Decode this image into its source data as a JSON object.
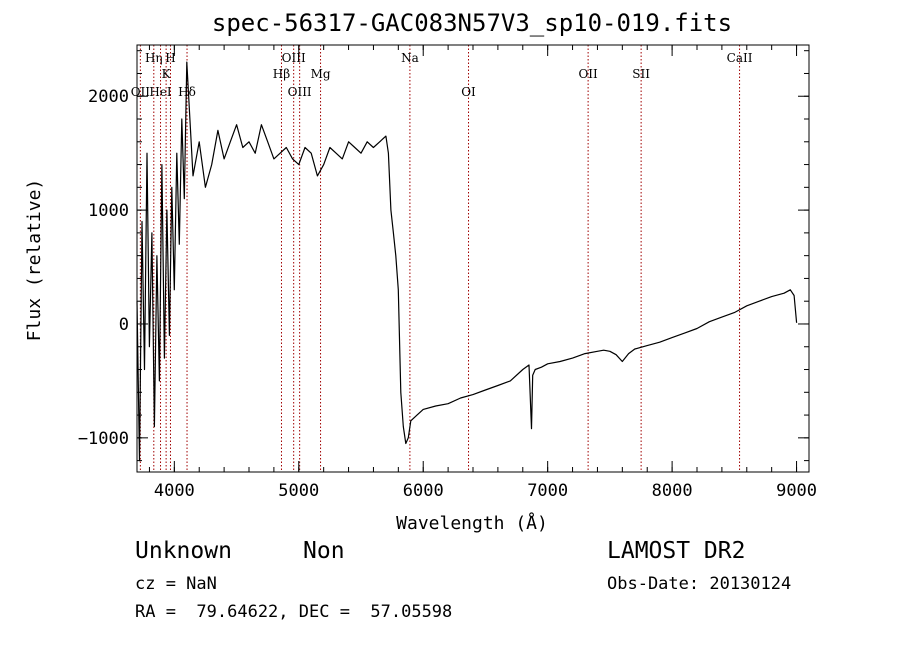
{
  "chart_data": {
    "type": "line",
    "title": "spec-56317-GAC083N57V3_sp10-019.fits",
    "xlabel": "Wavelength (Å)",
    "ylabel": "Flux (relative)",
    "xlim": [
      3700,
      9100
    ],
    "ylim": [
      -1300,
      2450
    ],
    "xticks": [
      4000,
      5000,
      6000,
      7000,
      8000,
      9000
    ],
    "yticks": [
      -1000,
      0,
      1000,
      2000
    ],
    "xtick_labels": [
      "4000",
      "5000",
      "6000",
      "7000",
      "8000",
      "9000"
    ],
    "ytick_labels": [
      "−1000",
      "0",
      "1000",
      "2000"
    ],
    "series": [
      {
        "x": [
          3700,
          3720,
          3740,
          3760,
          3780,
          3800,
          3820,
          3840,
          3860,
          3880,
          3900,
          3920,
          3940,
          3960,
          3980,
          4000,
          4020,
          4040,
          4060,
          4080,
          4100,
          4150,
          4200,
          4250,
          4300,
          4350,
          4400,
          4450,
          4500,
          4550,
          4600,
          4650,
          4700,
          4750,
          4800,
          4850,
          4900,
          4950,
          5000,
          5050,
          5100,
          5150,
          5200,
          5250,
          5300,
          5350,
          5400,
          5450,
          5500,
          5550,
          5600,
          5650,
          5700,
          5720,
          5740,
          5760,
          5780,
          5800,
          5820,
          5840,
          5860,
          5880,
          5900,
          5950,
          6000,
          6100,
          6200,
          6300,
          6400,
          6500,
          6600,
          6700,
          6800,
          6850,
          6870,
          6880,
          6900,
          6950,
          7000,
          7100,
          7200,
          7300,
          7400,
          7450,
          7500,
          7550,
          7600,
          7650,
          7700,
          7800,
          7900,
          8000,
          8100,
          8200,
          8300,
          8400,
          8500,
          8600,
          8700,
          8800,
          8900,
          8950,
          8980,
          9000
        ],
        "y": [
          200,
          -1200,
          900,
          -400,
          1500,
          -200,
          800,
          -900,
          600,
          -500,
          1400,
          -300,
          1000,
          -100,
          1200,
          300,
          1500,
          700,
          1800,
          1100,
          2300,
          1300,
          1600,
          1200,
          1400,
          1700,
          1450,
          1600,
          1750,
          1550,
          1600,
          1500,
          1750,
          1600,
          1450,
          1500,
          1550,
          1450,
          1400,
          1550,
          1500,
          1300,
          1400,
          1550,
          1500,
          1450,
          1600,
          1550,
          1500,
          1600,
          1550,
          1600,
          1650,
          1500,
          1000,
          800,
          600,
          300,
          -600,
          -900,
          -1050,
          -1000,
          -850,
          -800,
          -750,
          -720,
          -700,
          -650,
          -620,
          -580,
          -540,
          -500,
          -400,
          -360,
          -920,
          -450,
          -400,
          -380,
          -350,
          -330,
          -300,
          -260,
          -240,
          -230,
          -240,
          -270,
          -330,
          -260,
          -220,
          -190,
          -160,
          -120,
          -80,
          -40,
          20,
          60,
          100,
          160,
          200,
          240,
          270,
          300,
          250,
          10
        ]
      }
    ],
    "lines": [
      {
        "wl": 3727,
        "label": "OII",
        "row": 3
      },
      {
        "wl": 3835,
        "label": "Hη",
        "row": 1
      },
      {
        "wl": 3889,
        "label": "HeI",
        "row": 3
      },
      {
        "wl": 3934,
        "label": "K",
        "row": 2
      },
      {
        "wl": 3969,
        "label": "H",
        "row": 1
      },
      {
        "wl": 4102,
        "label": "Hδ",
        "row": 3
      },
      {
        "wl": 4861,
        "label": "Hβ",
        "row": 2
      },
      {
        "wl": 4959,
        "label": "OIII",
        "row": 1
      },
      {
        "wl": 5007,
        "label": "OIII",
        "row": 3
      },
      {
        "wl": 5175,
        "label": "Mg",
        "row": 2
      },
      {
        "wl": 5893,
        "label": "Na",
        "row": 1
      },
      {
        "wl": 6364,
        "label": "OI",
        "row": 3
      },
      {
        "wl": 7325,
        "label": "OII",
        "row": 2
      },
      {
        "wl": 7751,
        "label": "SII",
        "row": 2
      },
      {
        "wl": 8542,
        "label": "CaII",
        "row": 1
      }
    ]
  },
  "info": {
    "class_text": "Unknown",
    "subclass_text": "Non",
    "cz_text": "cz = NaN",
    "radec_text": "RA =  79.64622, DEC =  57.05598",
    "survey_text": "LAMOST DR2",
    "obsdate_text": "Obs-Date: 20130124"
  }
}
